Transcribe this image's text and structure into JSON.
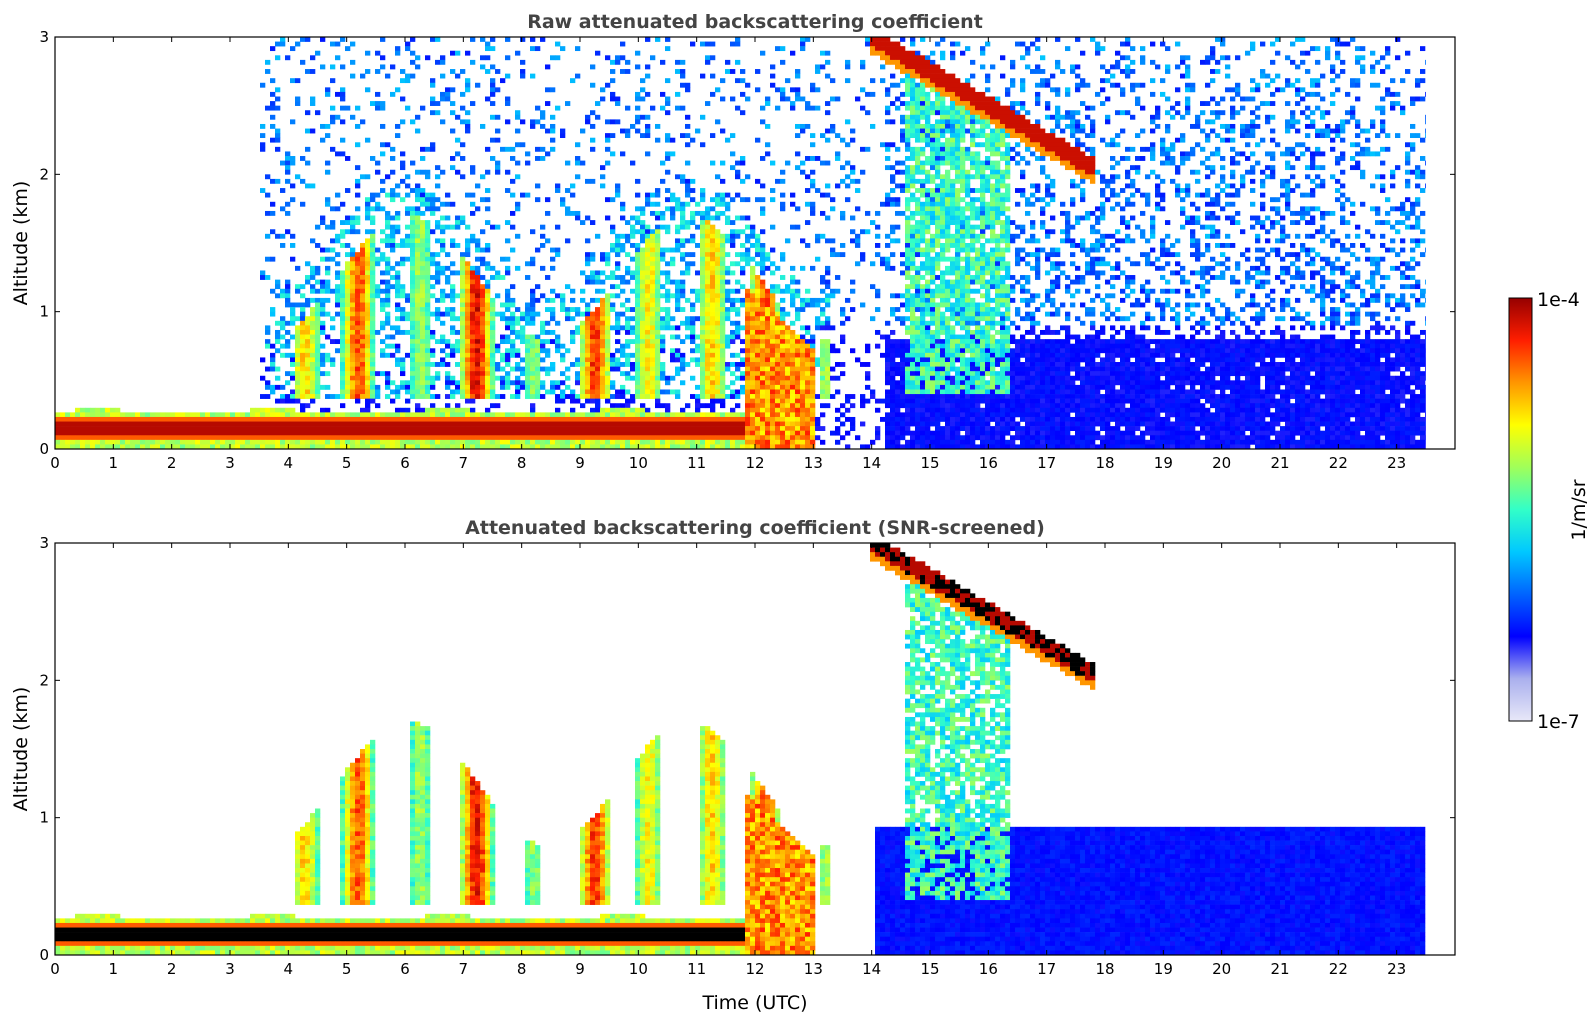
{
  "chart_data": [
    {
      "type": "heatmap",
      "title": "Raw attenuated backscattering coefficient",
      "xlabel": "",
      "ylabel": "Altitude (km)",
      "xlim": [
        0,
        24
      ],
      "ylim": [
        0,
        3
      ],
      "xticks": [
        "0",
        "1",
        "2",
        "3",
        "4",
        "5",
        "6",
        "7",
        "8",
        "9",
        "10",
        "11",
        "12",
        "13",
        "14",
        "15",
        "16",
        "17",
        "18",
        "19",
        "20",
        "21",
        "22",
        "23"
      ],
      "yticks": [
        "0",
        "1",
        "2",
        "3"
      ],
      "features": [
        {
          "name": "boundary layer aerosol",
          "t_start": 0,
          "t_end": 12.3,
          "alt_km": 0.15,
          "level": "high"
        },
        {
          "name": "precipitation fall streaks",
          "t_start": 3.5,
          "t_end": 12.5,
          "alt_top_km": 1.8,
          "level": "medium"
        },
        {
          "name": "cirrus layer",
          "t_start": 14.0,
          "t_end": 17.7,
          "alt_start_km": 3.0,
          "alt_end_km": 2.05,
          "level": "high"
        },
        {
          "name": "noise region",
          "t_start": 14.6,
          "t_end": 23.5,
          "alt_top_km": 3.0,
          "level": "low"
        }
      ]
    },
    {
      "type": "heatmap",
      "title": "Attenuated backscattering coefficient (SNR-screened)",
      "xlabel": "Time (UTC)",
      "ylabel": "Altitude (km)",
      "xlim": [
        0,
        24
      ],
      "ylim": [
        0,
        3
      ],
      "xticks": [
        "0",
        "1",
        "2",
        "3",
        "4",
        "5",
        "6",
        "7",
        "8",
        "9",
        "10",
        "11",
        "12",
        "13",
        "14",
        "15",
        "16",
        "17",
        "18",
        "19",
        "20",
        "21",
        "22",
        "23"
      ],
      "yticks": [
        "0",
        "1",
        "2",
        "3"
      ],
      "features": [
        {
          "name": "boundary layer aerosol",
          "t_start": 0,
          "t_end": 12.3,
          "alt_km": 0.15,
          "level": "saturated"
        },
        {
          "name": "precipitation fall streaks",
          "t_start": 4.0,
          "t_end": 12.5,
          "alt_top_km": 1.8,
          "level": "medium"
        },
        {
          "name": "cirrus layer",
          "t_start": 14.0,
          "t_end": 17.7,
          "alt_start_km": 3.0,
          "alt_end_km": 2.05,
          "level": "saturated"
        },
        {
          "name": "screened low layer",
          "t_start": 14.1,
          "t_end": 23.5,
          "alt_top_km": 0.95,
          "level": "low"
        }
      ]
    }
  ],
  "colorbar": {
    "label": "1/m/sr",
    "max_label": "1e-4",
    "min_label": "1e-7",
    "colors": [
      "#e8e8f8",
      "#aab0ee",
      "#0000ff",
      "#0064ff",
      "#00c8ff",
      "#32ffc8",
      "#a0ff5a",
      "#ffff00",
      "#ff9600",
      "#ff1e00",
      "#960000"
    ]
  }
}
